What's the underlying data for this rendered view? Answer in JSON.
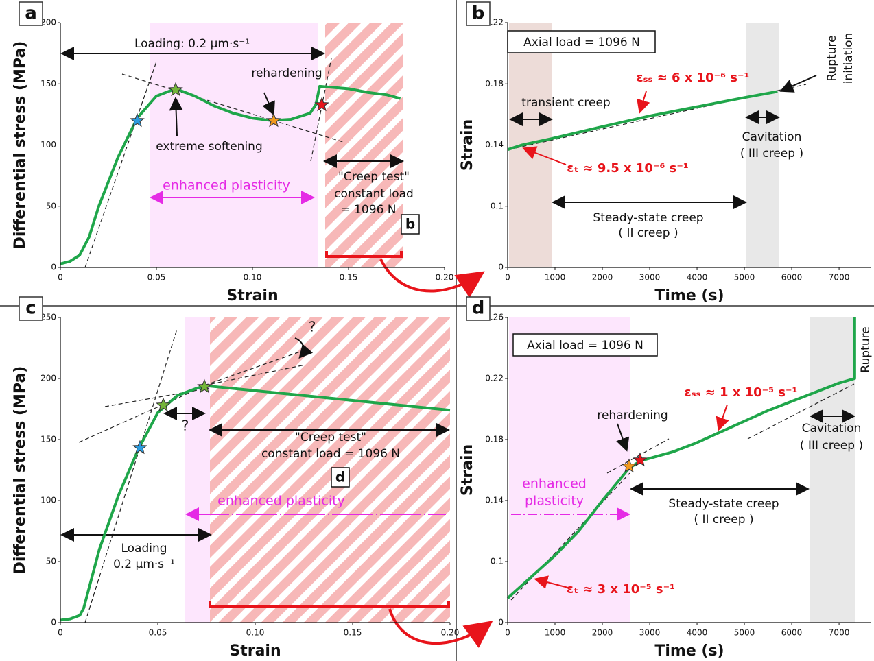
{
  "chart_data": [
    {
      "type": "line",
      "panel_label": "a",
      "x_label": "Strain",
      "y_label": "Differential stress (MPa)",
      "xlim": [
        0,
        0.2
      ],
      "ylim": [
        0,
        200
      ],
      "xticks": [
        0,
        0.05,
        {
          "value": 0.1,
          "label": "0.10"
        },
        0.15,
        {
          "value": 0.2,
          "label": "0.20"
        }
      ],
      "yticks": [
        0,
        50,
        100,
        150,
        200
      ],
      "series": [
        {
          "color": "#1fa64a",
          "x": [
            0,
            0.005,
            0.01,
            0.015,
            0.02,
            0.03,
            0.04,
            0.05,
            0.06,
            0.07,
            0.08,
            0.09,
            0.1,
            0.11,
            0.12,
            0.13,
            0.133,
            0.135,
            0.15,
            0.16,
            0.17,
            0.177
          ],
          "values": [
            3,
            5,
            10,
            25,
            50,
            90,
            122,
            140,
            146,
            140,
            132,
            126,
            122,
            120,
            121,
            126,
            133,
            148,
            146,
            143,
            141,
            138
          ]
        }
      ],
      "annotations": [
        "Loading: 0.2 µm·s⁻¹",
        "rehardening",
        "extreme softening",
        "enhanced plasticity",
        "\"Creep test\"",
        "constant load",
        "= 1096 N",
        "b"
      ]
    },
    {
      "type": "line",
      "panel_label": "b",
      "x_label": "Time (s)",
      "y_label": "Strain",
      "xlim": [
        0,
        7680
      ],
      "ylim": [
        0.06,
        0.22
      ],
      "xticks": [
        0,
        1000,
        2000,
        3000,
        4000,
        5000,
        6000,
        7000
      ],
      "yticks": [
        {
          "value": 0.06,
          "label": "0"
        },
        0.1,
        0.14,
        0.18,
        0.22
      ],
      "series": [
        {
          "color": "#1fa64a",
          "x": [
            0,
            300,
            900,
            2000,
            3000,
            4000,
            5000,
            5700
          ],
          "values": [
            0.137,
            0.14,
            0.144,
            0.152,
            0.159,
            0.165,
            0.171,
            0.175
          ]
        }
      ],
      "annotations": [
        "Axial load = 1096 N",
        "transient creep",
        "εₛₛ ≈ 6 x 10⁻⁶ s⁻¹",
        "εₜ ≈ 9.5 x 10⁻⁶ s⁻¹",
        "Rupture",
        "initiation",
        "Cavitation",
        "( III creep )",
        "Steady-state creep",
        "( II creep )"
      ]
    },
    {
      "type": "line",
      "panel_label": "c",
      "x_label": "Strain",
      "y_label": "Differential stress (MPa)",
      "xlim": [
        0,
        0.2
      ],
      "ylim": [
        0,
        250
      ],
      "xticks": [
        0,
        0.05,
        {
          "value": 0.1,
          "label": "0.10"
        },
        0.15,
        {
          "value": 0.2,
          "label": "0.20"
        }
      ],
      "yticks": [
        0,
        50,
        100,
        150,
        200,
        250
      ],
      "series": [
        {
          "color": "#1fa64a",
          "x": [
            0,
            0.005,
            0.01,
            0.012,
            0.015,
            0.02,
            0.03,
            0.04,
            0.05,
            0.06,
            0.07,
            0.075,
            0.1,
            0.125,
            0.15,
            0.175,
            0.2
          ],
          "values": [
            2,
            3,
            6,
            12,
            30,
            60,
            105,
            142,
            172,
            186,
            192,
            194,
            190,
            186,
            182,
            178,
            174
          ]
        }
      ],
      "annotations": [
        "?",
        "?",
        "\"Creep test\"",
        "constant load = 1096 N",
        "d",
        "enhanced plasticity",
        "Loading",
        "0.2 µm·s⁻¹"
      ]
    },
    {
      "type": "line",
      "panel_label": "d",
      "x_label": "Time (s)",
      "y_label": "Strain",
      "xlim": [
        0,
        7680
      ],
      "ylim": [
        0.06,
        0.26
      ],
      "xticks": [
        0,
        1000,
        2000,
        3000,
        4000,
        5000,
        6000,
        7000
      ],
      "yticks": [
        {
          "value": 0.06,
          "label": "0"
        },
        0.1,
        0.14,
        0.18,
        0.22,
        0.26
      ],
      "series": [
        {
          "color": "#1fa64a",
          "x": [
            0,
            500,
            1000,
            1500,
            2000,
            2560,
            2800,
            3500,
            4000,
            4500,
            5000,
            5500,
            6000,
            6500,
            7000,
            7330,
            7330
          ],
          "values": [
            0.076,
            0.09,
            0.104,
            0.12,
            0.14,
            0.161,
            0.166,
            0.172,
            0.178,
            0.185,
            0.192,
            0.199,
            0.205,
            0.211,
            0.217,
            0.22,
            0.26
          ]
        }
      ],
      "annotations": [
        "Axial load = 1096 N",
        "Rupture",
        "εₛₛ ≈ 1 x 10⁻⁵ s⁻¹",
        "rehardening",
        "Cavitation",
        "( III creep )",
        "enhanced",
        "plasticity",
        "Steady-state creep",
        "( II creep )",
        "εₜ ≈ 3 x 10⁻⁵ s⁻¹"
      ]
    }
  ]
}
